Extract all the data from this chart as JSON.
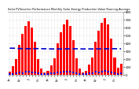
{
  "title": "Solar PV/Inverter Performance Monthly Solar Energy Production Value Running Average",
  "bar_values": [
    45,
    110,
    200,
    380,
    520,
    620,
    680,
    600,
    420,
    200,
    80,
    30,
    50,
    120,
    210,
    400,
    540,
    640,
    700,
    620,
    440,
    210,
    85,
    35,
    55,
    130,
    220,
    420,
    560,
    660,
    720,
    640,
    460,
    220,
    90,
    140
  ],
  "running_avg": [
    340,
    340,
    338,
    336,
    335,
    334,
    334,
    334,
    335,
    335,
    334,
    333,
    332,
    331,
    331,
    331,
    331,
    331,
    332,
    332,
    333,
    333,
    332,
    331,
    331,
    331,
    331,
    331,
    332,
    332,
    333,
    333,
    334,
    334,
    333,
    332
  ],
  "scatter_y": [
    12,
    18,
    22,
    35,
    28,
    40,
    45,
    38,
    30,
    20,
    15,
    10,
    14,
    20,
    24,
    38,
    30,
    42,
    48,
    40,
    32,
    22,
    16,
    12,
    15,
    22,
    26,
    40,
    32,
    44,
    50,
    42,
    34,
    24,
    18,
    25
  ],
  "bar_color": "#ff0000",
  "avg_color": "#0000cc",
  "scatter_color": "#0000ff",
  "background_color": "#ffffff",
  "grid_color": "#cccccc",
  "ylim_max": 800,
  "ytick_step": 100,
  "n_bars": 36,
  "months": [
    "Jan",
    "Feb",
    "Mar",
    "Apr",
    "May",
    "Jun",
    "Jul",
    "Aug",
    "Sep",
    "Oct",
    "Nov",
    "Dec"
  ]
}
